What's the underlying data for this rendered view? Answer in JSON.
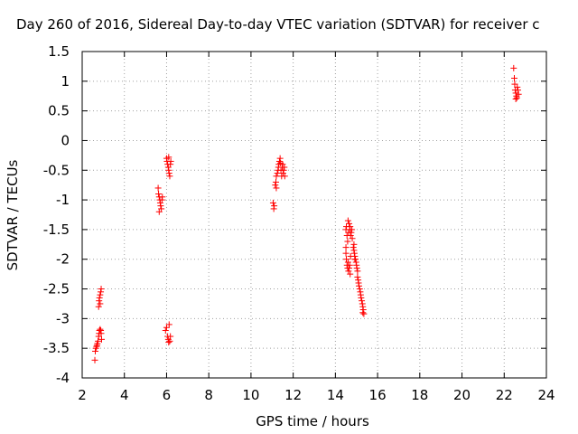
{
  "chart_data": {
    "type": "scatter",
    "title": "Day 260 of 2016, Sidereal Day-to-day VTEC variation (SDTVAR) for receiver c",
    "xlabel": "GPS time / hours",
    "ylabel": "SDTVAR / TECUs",
    "xlim": [
      2,
      24
    ],
    "ylim": [
      -4,
      1.5
    ],
    "xticks": [
      2,
      4,
      6,
      8,
      10,
      12,
      14,
      16,
      18,
      20,
      22,
      24
    ],
    "yticks": [
      1.5,
      1,
      0.5,
      0,
      -0.5,
      -1,
      -1.5,
      -2,
      -2.5,
      -3,
      -3.5,
      -4
    ],
    "grid": true,
    "marker": "plus",
    "marker_color": "#ff0000",
    "series": [
      {
        "points": [
          [
            2.6,
            -3.7
          ],
          [
            2.62,
            -3.55
          ],
          [
            2.65,
            -3.5
          ],
          [
            2.68,
            -3.47
          ],
          [
            2.7,
            -3.45
          ],
          [
            2.72,
            -3.42
          ],
          [
            2.75,
            -3.38
          ],
          [
            2.78,
            -3.3
          ],
          [
            2.8,
            -3.25
          ],
          [
            2.82,
            -3.2
          ],
          [
            2.85,
            -3.18
          ],
          [
            2.88,
            -3.2
          ],
          [
            2.9,
            -3.25
          ],
          [
            2.92,
            -3.35
          ],
          [
            2.8,
            -2.7
          ],
          [
            2.82,
            -2.65
          ],
          [
            2.85,
            -2.6
          ],
          [
            2.88,
            -2.55
          ],
          [
            2.9,
            -2.5
          ],
          [
            2.78,
            -2.8
          ],
          [
            2.85,
            -2.75
          ],
          [
            5.6,
            -0.8
          ],
          [
            5.62,
            -0.9
          ],
          [
            5.65,
            -0.95
          ],
          [
            5.68,
            -1.0
          ],
          [
            5.7,
            -1.05
          ],
          [
            5.72,
            -1.1
          ],
          [
            5.75,
            -1.15
          ],
          [
            5.78,
            -1.0
          ],
          [
            5.8,
            -0.95
          ],
          [
            5.65,
            -1.2
          ],
          [
            6.0,
            -0.3
          ],
          [
            6.02,
            -0.35
          ],
          [
            6.05,
            -0.4
          ],
          [
            6.08,
            -0.45
          ],
          [
            6.1,
            -0.5
          ],
          [
            6.12,
            -0.55
          ],
          [
            6.15,
            -0.6
          ],
          [
            6.18,
            -0.4
          ],
          [
            6.2,
            -0.35
          ],
          [
            6.1,
            -0.28
          ],
          [
            5.95,
            -3.2
          ],
          [
            6.0,
            -3.15
          ],
          [
            6.05,
            -3.3
          ],
          [
            6.08,
            -3.35
          ],
          [
            6.1,
            -3.4
          ],
          [
            6.15,
            -3.38
          ],
          [
            6.18,
            -3.3
          ],
          [
            6.12,
            -3.1
          ],
          [
            11.05,
            -1.05
          ],
          [
            11.08,
            -1.15
          ],
          [
            11.1,
            -1.1
          ],
          [
            11.15,
            -0.75
          ],
          [
            11.18,
            -0.7
          ],
          [
            11.2,
            -0.6
          ],
          [
            11.25,
            -0.55
          ],
          [
            11.28,
            -0.5
          ],
          [
            11.3,
            -0.45
          ],
          [
            11.32,
            -0.4
          ],
          [
            11.35,
            -0.35
          ],
          [
            11.38,
            -0.3
          ],
          [
            11.4,
            -0.38
          ],
          [
            11.42,
            -0.5
          ],
          [
            11.45,
            -0.6
          ],
          [
            11.48,
            -0.45
          ],
          [
            11.5,
            -0.4
          ],
          [
            11.52,
            -0.55
          ],
          [
            11.55,
            -0.5
          ],
          [
            11.58,
            -0.45
          ],
          [
            11.6,
            -0.6
          ],
          [
            11.2,
            -0.8
          ],
          [
            14.5,
            -1.5
          ],
          [
            14.52,
            -1.45
          ],
          [
            14.55,
            -1.6
          ],
          [
            14.58,
            -1.7
          ],
          [
            14.6,
            -1.35
          ],
          [
            14.62,
            -1.55
          ],
          [
            14.65,
            -1.4
          ],
          [
            14.68,
            -1.5
          ],
          [
            14.7,
            -1.45
          ],
          [
            14.72,
            -1.6
          ],
          [
            14.75,
            -1.55
          ],
          [
            14.78,
            -1.5
          ],
          [
            14.8,
            -1.65
          ],
          [
            14.5,
            -1.9
          ],
          [
            14.52,
            -2.0
          ],
          [
            14.55,
            -2.1
          ],
          [
            14.58,
            -2.15
          ],
          [
            14.6,
            -2.05
          ],
          [
            14.62,
            -2.2
          ],
          [
            14.65,
            -2.15
          ],
          [
            14.68,
            -2.1
          ],
          [
            14.7,
            -2.25
          ],
          [
            14.72,
            -1.95
          ],
          [
            14.5,
            -1.8
          ],
          [
            14.85,
            -1.8
          ],
          [
            14.88,
            -1.85
          ],
          [
            14.9,
            -1.9
          ],
          [
            14.92,
            -1.95
          ],
          [
            14.95,
            -2.0
          ],
          [
            14.98,
            -2.05
          ],
          [
            15.0,
            -2.1
          ],
          [
            15.02,
            -2.15
          ],
          [
            15.05,
            -2.2
          ],
          [
            14.88,
            -1.75
          ],
          [
            14.92,
            -2.0
          ],
          [
            15.05,
            -2.3
          ],
          [
            15.08,
            -2.35
          ],
          [
            15.1,
            -2.4
          ],
          [
            15.12,
            -2.45
          ],
          [
            15.15,
            -2.5
          ],
          [
            15.18,
            -2.55
          ],
          [
            15.2,
            -2.6
          ],
          [
            15.22,
            -2.65
          ],
          [
            15.25,
            -2.7
          ],
          [
            15.28,
            -2.75
          ],
          [
            15.3,
            -2.8
          ],
          [
            15.3,
            -2.9
          ],
          [
            15.32,
            -2.85
          ],
          [
            15.35,
            -2.92
          ],
          [
            22.45,
            1.22
          ],
          [
            22.48,
            1.05
          ],
          [
            22.5,
            0.95
          ],
          [
            22.52,
            0.85
          ],
          [
            22.55,
            0.8
          ],
          [
            22.58,
            0.75
          ],
          [
            22.6,
            0.72
          ],
          [
            22.62,
            0.9
          ],
          [
            22.65,
            0.85
          ],
          [
            22.68,
            0.78
          ],
          [
            22.55,
            0.7
          ]
        ]
      }
    ]
  }
}
